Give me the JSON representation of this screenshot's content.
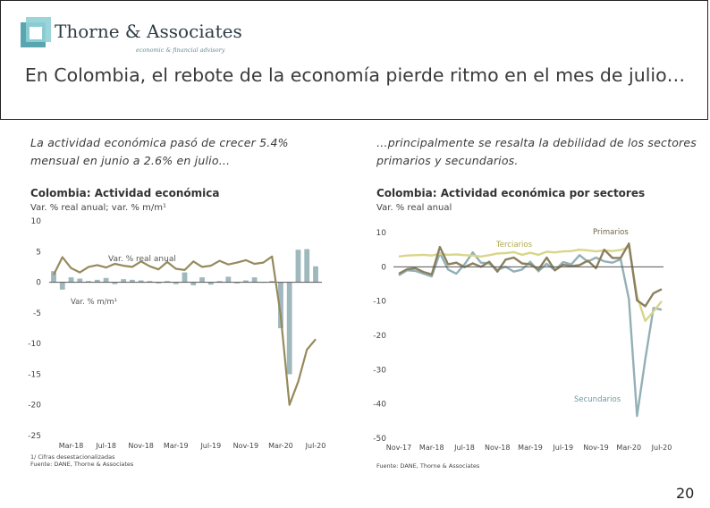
{
  "header": {
    "logo_name": "Thorne & Associates",
    "logo_tagline": "economic & financial advisory",
    "title": "En Colombia, el rebote de la economía pierde ritmo en el mes de julio…"
  },
  "left_text": "La actividad económica pasó de crecer 5.4% mensual en junio a 2.6% en julio…",
  "right_text": "…principalmente se resalta la debilidad de los sectores primarios y secundarios.",
  "page_number": "20",
  "colors": {
    "annual_line": "#968a5c",
    "monthly_bar": "#9fb8bd",
    "terciarios": "#d8d68a",
    "primarios": "#8a8060",
    "secundarios": "#92b0b6",
    "zero_line": "#555555"
  },
  "chart_data": [
    {
      "type": "bar+line",
      "title": "Colombia: Actividad económica",
      "subtitle": "Var. % real anual; var. % m/m¹",
      "footnote": "1/ Cifras desestacionalizadas",
      "source": "Fuente: DANE, Thorne & Associates",
      "ylim": [
        -25,
        10
      ],
      "y_ticks": [
        "10",
        "5",
        "0",
        "-5",
        "-10",
        "-15",
        "-20",
        "-25"
      ],
      "x_ticks": [
        "Mar-18",
        "Jul-18",
        "Nov-18",
        "Mar-19",
        "Jul-19",
        "Nov-19",
        "Mar-20",
        "Jul-20"
      ],
      "x": [
        "Ene-18",
        "Feb-18",
        "Mar-18",
        "Abr-18",
        "May-18",
        "Jun-18",
        "Jul-18",
        "Ago-18",
        "Sep-18",
        "Oct-18",
        "Nov-18",
        "Dic-18",
        "Ene-19",
        "Feb-19",
        "Mar-19",
        "Abr-19",
        "May-19",
        "Jun-19",
        "Jul-19",
        "Ago-19",
        "Sep-19",
        "Oct-19",
        "Nov-19",
        "Dic-19",
        "Ene-20",
        "Feb-20",
        "Mar-20",
        "Abr-20",
        "May-20",
        "Jun-20",
        "Jul-20"
      ],
      "series": [
        {
          "name": "Var. % real anual",
          "kind": "line",
          "values": [
            1.2,
            4.1,
            2.3,
            1.6,
            2.5,
            2.8,
            2.4,
            3.0,
            2.7,
            2.5,
            3.4,
            2.6,
            2.1,
            3.3,
            2.2,
            2.0,
            3.4,
            2.5,
            2.7,
            3.5,
            2.9,
            3.2,
            3.6,
            3.0,
            3.2,
            4.2,
            -5.4,
            -20.0,
            -16.2,
            -11.0,
            -9.3
          ]
        },
        {
          "name": "Var. % m/m¹",
          "kind": "bar",
          "values": [
            1.8,
            -1.2,
            0.8,
            0.6,
            0.2,
            0.4,
            0.7,
            -0.3,
            0.5,
            0.4,
            0.3,
            0.2,
            -0.2,
            0.2,
            -0.3,
            1.6,
            -0.5,
            0.8,
            -0.4,
            0.2,
            0.9,
            -0.2,
            0.3,
            0.8,
            0.0,
            0.2,
            -7.5,
            -15.0,
            5.3,
            5.4,
            2.6
          ]
        }
      ]
    },
    {
      "type": "line",
      "title": "Colombia: Actividad económica por sectores",
      "subtitle": "Var. % real anual",
      "source": "Fuente: DANE, Thorne & Associates",
      "ylim": [
        -50,
        10
      ],
      "y_ticks": [
        "10",
        "0",
        "-10",
        "-20",
        "-30",
        "-40",
        "-50"
      ],
      "x_ticks": [
        "Nov-17",
        "Mar-18",
        "Jul-18",
        "Nov-18",
        "Mar-19",
        "Jul-19",
        "Nov-19",
        "Mar-20",
        "Jul-20"
      ],
      "x": [
        "Nov-17",
        "Dic-17",
        "Ene-18",
        "Feb-18",
        "Mar-18",
        "Abr-18",
        "May-18",
        "Jun-18",
        "Jul-18",
        "Ago-18",
        "Sep-18",
        "Oct-18",
        "Nov-18",
        "Dic-18",
        "Ene-19",
        "Feb-19",
        "Mar-19",
        "Abr-19",
        "May-19",
        "Jun-19",
        "Jul-19",
        "Ago-19",
        "Sep-19",
        "Oct-19",
        "Nov-19",
        "Dic-19",
        "Ene-20",
        "Feb-20",
        "Mar-20",
        "Abr-20",
        "May-20",
        "Jun-20",
        "Jul-20"
      ],
      "series": [
        {
          "name": "Terciarios",
          "values": [
            3.0,
            3.3,
            3.4,
            3.5,
            3.3,
            3.8,
            3.5,
            3.6,
            3.4,
            3.3,
            3.0,
            3.4,
            3.9,
            4.0,
            4.3,
            3.5,
            4.1,
            3.5,
            4.4,
            4.2,
            4.5,
            4.6,
            5.0,
            4.8,
            4.5,
            4.8,
            4.6,
            4.9,
            5.8,
            -8.5,
            -15.8,
            -13.0,
            -10.0
          ]
        },
        {
          "name": "Primarios",
          "values": [
            -2.0,
            -0.7,
            -0.4,
            -1.5,
            -2.2,
            5.8,
            0.7,
            1.2,
            -0.1,
            1.0,
            0.0,
            1.5,
            -1.4,
            2.1,
            2.7,
            1.0,
            0.7,
            -0.8,
            2.7,
            -1.0,
            0.6,
            0.2,
            0.5,
            1.8,
            -0.4,
            5.0,
            2.6,
            2.6,
            6.8,
            -9.8,
            -11.5,
            -7.7,
            -6.5
          ]
        },
        {
          "name": "Secundarios",
          "values": [
            -2.5,
            -1.0,
            -1.2,
            -2.0,
            -2.8,
            4.0,
            -0.8,
            -2.0,
            0.7,
            4.2,
            1.2,
            1.0,
            -0.9,
            0.0,
            -1.4,
            -0.8,
            1.5,
            -1.3,
            0.9,
            -1.0,
            1.4,
            0.7,
            3.4,
            1.5,
            2.7,
            1.6,
            1.2,
            2.2,
            -9.4,
            -43.5,
            -27.0,
            -12.0,
            -12.5
          ]
        }
      ]
    }
  ]
}
